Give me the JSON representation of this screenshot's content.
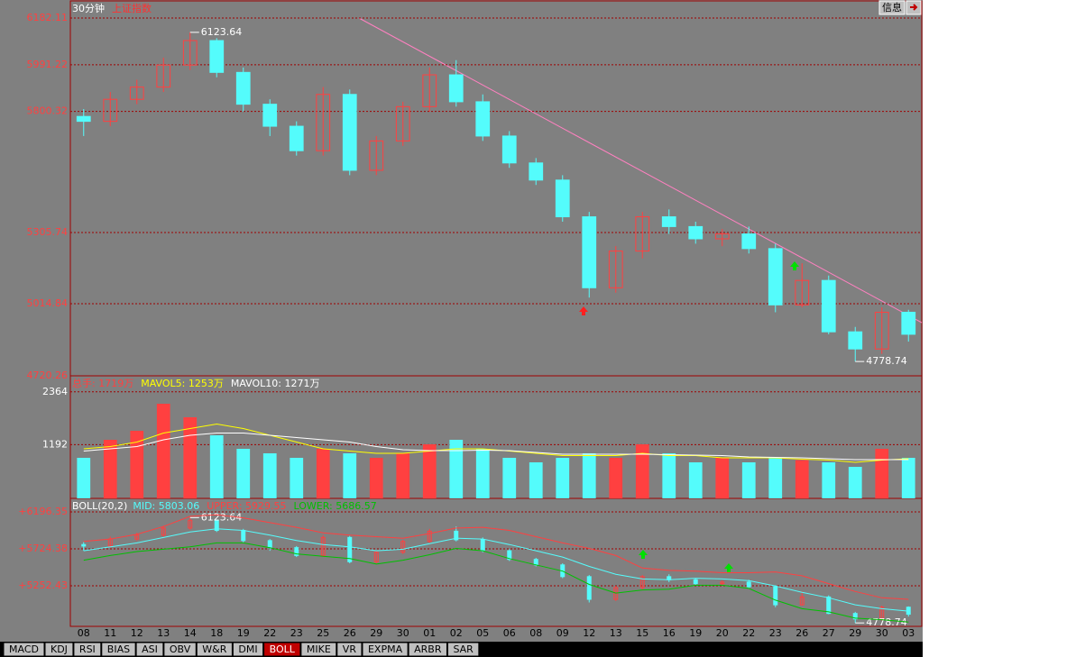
{
  "window": {
    "period": "30分钟",
    "symbol": "上证指数",
    "button": "信息",
    "tabs": [
      "MACD",
      "KDJ",
      "RSI",
      "BIAS",
      "ASI",
      "OBV",
      "W&R",
      "DMI",
      "BOLL",
      "MIKE",
      "VR",
      "EXPMA",
      "ARBR",
      "SAR"
    ]
  },
  "chart_data": [
    {
      "type": "candlestick",
      "categories": [
        "08",
        "11",
        "12",
        "13",
        "14",
        "18",
        "19",
        "22",
        "23",
        "25",
        "26",
        "29",
        "30",
        "01",
        "02",
        "05",
        "06",
        "08",
        "09",
        "12",
        "13",
        "15",
        "16",
        "19",
        "20",
        "22",
        "23",
        "26",
        "27",
        "29",
        "30",
        "03"
      ],
      "open": [
        5780,
        5760,
        5850,
        5900,
        5990,
        6090,
        5960,
        5830,
        5740,
        5640,
        5870,
        5560,
        5680,
        5820,
        5950,
        5840,
        5700,
        5590,
        5520,
        5370,
        5080,
        5230,
        5370,
        5330,
        5280,
        5300,
        5240,
        5010,
        5110,
        4900,
        4830,
        4980
      ],
      "close": [
        5760,
        5850,
        5900,
        5990,
        6090,
        5960,
        5830,
        5740,
        5640,
        5870,
        5560,
        5680,
        5820,
        5950,
        5840,
        5700,
        5590,
        5520,
        5370,
        5080,
        5230,
        5370,
        5330,
        5280,
        5300,
        5240,
        5010,
        5110,
        4900,
        4830,
        4980,
        4890
      ],
      "high": [
        5810,
        5880,
        5930,
        6020,
        6123.64,
        6100,
        5980,
        5850,
        5760,
        5900,
        5890,
        5700,
        5840,
        5980,
        6010,
        5870,
        5720,
        5610,
        5540,
        5390,
        5250,
        5390,
        5400,
        5350,
        5320,
        5330,
        5260,
        5180,
        5130,
        4920,
        5000,
        4990
      ],
      "low": [
        5700,
        5740,
        5830,
        5880,
        5970,
        5940,
        5800,
        5700,
        5620,
        5620,
        5540,
        5540,
        5660,
        5800,
        5820,
        5680,
        5570,
        5500,
        5350,
        5040,
        5060,
        5200,
        5300,
        5260,
        5250,
        5220,
        4980,
        5000,
        4890,
        4778.74,
        4810,
        4860
      ],
      "up_color": "#ff4040",
      "down_color": "#54fcfc",
      "annotations": [
        6123.64,
        4778.74
      ],
      "ylim": [
        4720.26,
        6182.11
      ],
      "yticks": [
        6182.11,
        5991.22,
        5800.32,
        5305.74,
        5014.84,
        4720.26
      ],
      "grid": true
    },
    {
      "type": "bar",
      "series": [
        {
          "name": "总手: 1719万",
          "color": "#ff4040",
          "values": [
            900,
            1300,
            1500,
            2100,
            1800,
            1400,
            1100,
            1000,
            900,
            1100,
            1000,
            900,
            1000,
            1200,
            1300,
            1100,
            900,
            800,
            900,
            1000,
            900,
            1200,
            1000,
            800,
            900,
            800,
            900,
            850,
            800,
            700,
            1100,
            900
          ]
        },
        {
          "name": "MAVOL5: 1253万",
          "color": "#ffff00",
          "values": [
            1100,
            1150,
            1250,
            1450,
            1550,
            1650,
            1550,
            1400,
            1250,
            1100,
            1050,
            1000,
            1000,
            1050,
            1100,
            1100,
            1050,
            1000,
            950,
            950,
            950,
            1000,
            950,
            950,
            900,
            900,
            900,
            870,
            850,
            800,
            850,
            880
          ]
        },
        {
          "name": "MAVOL10: 1271万",
          "color": "#ffffff",
          "values": [
            1050,
            1100,
            1150,
            1300,
            1400,
            1450,
            1450,
            1400,
            1350,
            1300,
            1250,
            1150,
            1080,
            1060,
            1060,
            1070,
            1060,
            1020,
            980,
            980,
            980,
            980,
            970,
            960,
            950,
            920,
            910,
            900,
            880,
            860,
            860,
            860
          ]
        }
      ],
      "ylim": [
        0,
        2720
      ],
      "yticks": [
        2364,
        1192
      ],
      "grid": true
    },
    {
      "type": "line",
      "title": "BOLL(20,2)",
      "series": [
        {
          "name": "MID: 5803.06",
          "color": "#54fcfc",
          "values": [
            5700,
            5750,
            5800,
            5870,
            5940,
            5980,
            5960,
            5900,
            5830,
            5780,
            5750,
            5700,
            5720,
            5790,
            5860,
            5850,
            5780,
            5700,
            5620,
            5500,
            5400,
            5340,
            5330,
            5350,
            5340,
            5320,
            5250,
            5170,
            5100,
            5010,
            4960,
            4930
          ]
        },
        {
          "name": "UPPER: 5929.55",
          "color": "#ff4040",
          "values": [
            5820,
            5850,
            5910,
            6010,
            6140,
            6160,
            6120,
            6060,
            6000,
            5930,
            5900,
            5880,
            5860,
            5920,
            5990,
            6000,
            5960,
            5880,
            5800,
            5730,
            5640,
            5480,
            5450,
            5440,
            5420,
            5420,
            5430,
            5380,
            5280,
            5180,
            5100,
            5080
          ]
        },
        {
          "name": "LOWER: 5686.57",
          "color": "#00c000",
          "values": [
            5580,
            5640,
            5690,
            5720,
            5750,
            5800,
            5800,
            5740,
            5660,
            5630,
            5600,
            5530,
            5580,
            5650,
            5730,
            5700,
            5600,
            5520,
            5440,
            5270,
            5160,
            5200,
            5210,
            5260,
            5260,
            5220,
            5070,
            4960,
            4920,
            4840,
            4820,
            4790
          ]
        }
      ],
      "ylim": [
        4735,
        6369
      ],
      "yticks": [
        {
          "value": 6196.35,
          "label": "+6196.35"
        },
        {
          "value": 5724.38,
          "label": "+5724.38"
        },
        {
          "value": 5252.43,
          "label": "+5252.43"
        }
      ],
      "grid": true
    }
  ]
}
